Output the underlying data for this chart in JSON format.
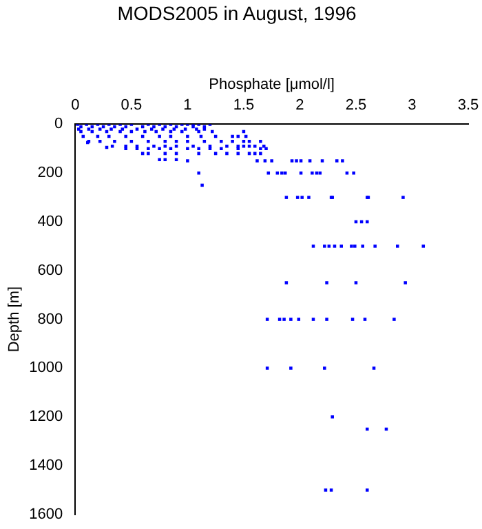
{
  "chart_data": {
    "type": "scatter",
    "title": "MODS2005 in August, 1996",
    "xlabel": "Phosphate [μmol/l]",
    "ylabel": "Depth [m]",
    "xlim": [
      0,
      3.5
    ],
    "xticks": [
      0,
      0.5,
      1,
      1.5,
      2,
      2.5,
      3,
      3.5
    ],
    "ylim": [
      1600,
      0
    ],
    "yticks": [
      0,
      200,
      400,
      600,
      800,
      1000,
      1200,
      1400,
      1600
    ],
    "grid": false,
    "legend": false,
    "marker": "square",
    "series": [
      {
        "color": "#0000ff",
        "x": [
          0.02,
          0.1,
          0.2,
          0.3,
          0.4,
          0.5,
          0.65,
          0.75,
          0.85,
          0.95,
          1.0,
          1.05,
          1.1,
          1.2,
          0.05,
          0.15,
          0.25,
          0.35,
          0.45,
          0.6,
          0.7,
          0.8,
          0.9,
          1.05,
          1.15,
          0.03,
          0.12,
          0.22,
          0.32,
          0.42,
          0.55,
          0.68,
          0.78,
          0.88,
          0.98,
          1.08,
          1.15,
          0.05,
          0.15,
          0.28,
          0.4,
          0.5,
          0.62,
          0.72,
          0.85,
          0.95,
          1.1,
          1.22,
          1.5,
          0.07,
          0.2,
          0.3,
          0.45,
          0.6,
          0.75,
          0.85,
          1.0,
          1.12,
          1.25,
          1.4,
          1.45,
          1.52,
          0.12,
          0.22,
          0.35,
          0.5,
          0.65,
          0.8,
          0.9,
          1.0,
          1.15,
          1.3,
          1.4,
          1.5,
          1.55,
          1.65,
          0.11,
          0.28,
          0.33,
          0.45,
          0.55,
          0.7,
          0.8,
          0.9,
          1.05,
          1.2,
          1.35,
          1.45,
          1.5,
          1.55,
          1.6,
          1.68,
          0.45,
          0.55,
          0.65,
          0.75,
          0.85,
          1.0,
          1.1,
          1.2,
          1.3,
          1.45,
          1.65,
          1.7,
          0.6,
          0.65,
          0.8,
          0.9,
          1.1,
          1.25,
          1.35,
          1.45,
          1.55,
          1.6,
          1.65,
          0.75,
          0.8,
          0.9,
          1.0,
          1.1,
          1.13,
          1.62,
          1.69,
          1.75,
          1.93,
          1.97,
          2.01,
          2.09,
          2.2,
          2.33,
          2.38,
          1.72,
          1.8,
          1.84,
          1.87,
          2.01,
          2.11,
          2.15,
          2.18,
          2.42,
          2.48,
          1.88,
          1.98,
          2.02,
          2.08,
          2.28,
          2.29,
          2.6,
          2.61,
          2.92,
          2.5,
          2.55,
          2.6,
          2.12,
          2.22,
          2.26,
          2.31,
          2.37,
          2.46,
          2.49,
          2.56,
          2.67,
          2.87,
          3.1,
          1.88,
          2.24,
          2.5,
          2.94,
          1.71,
          1.82,
          1.86,
          1.92,
          1.99,
          2.12,
          2.24,
          2.47,
          2.58,
          2.84,
          1.71,
          1.92,
          2.22,
          2.66,
          2.29,
          2.6,
          2.77,
          2.23,
          2.28,
          2.6
        ],
        "values": [
          0,
          0,
          0,
          0,
          0,
          0,
          0,
          0,
          0,
          0,
          0,
          0,
          0,
          0,
          10,
          10,
          10,
          10,
          10,
          10,
          10,
          10,
          10,
          10,
          10,
          20,
          20,
          20,
          20,
          20,
          20,
          20,
          20,
          20,
          20,
          20,
          20,
          30,
          30,
          30,
          30,
          30,
          30,
          30,
          30,
          30,
          30,
          30,
          30,
          50,
          50,
          50,
          50,
          50,
          50,
          50,
          50,
          50,
          50,
          50,
          50,
          50,
          70,
          70,
          70,
          70,
          70,
          70,
          70,
          70,
          70,
          70,
          70,
          70,
          70,
          70,
          75,
          95,
          90,
          90,
          90,
          90,
          90,
          90,
          90,
          90,
          90,
          90,
          90,
          90,
          90,
          90,
          100,
          100,
          100,
          100,
          100,
          100,
          100,
          100,
          100,
          100,
          100,
          100,
          120,
          120,
          120,
          120,
          120,
          120,
          120,
          120,
          120,
          120,
          120,
          145,
          145,
          145,
          150,
          200,
          250,
          150,
          150,
          150,
          150,
          150,
          150,
          150,
          150,
          150,
          150,
          200,
          200,
          200,
          200,
          200,
          200,
          200,
          200,
          200,
          200,
          300,
          300,
          300,
          300,
          300,
          300,
          300,
          300,
          300,
          400,
          400,
          400,
          500,
          500,
          500,
          500,
          500,
          500,
          500,
          500,
          500,
          500,
          500,
          650,
          650,
          650,
          650,
          800,
          800,
          800,
          800,
          800,
          800,
          800,
          800,
          800,
          800,
          1000,
          1000,
          1000,
          1000,
          1200,
          1250,
          1250,
          1500,
          1500,
          1500
        ]
      }
    ]
  }
}
